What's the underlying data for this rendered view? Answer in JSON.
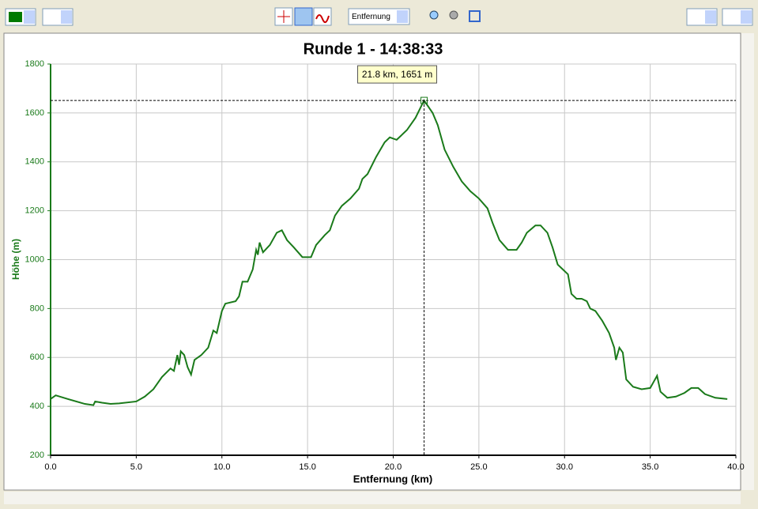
{
  "toolbar": {
    "axis_select": "Entfernung"
  },
  "chart_data": {
    "type": "line",
    "title": "Runde 1 - 14:38:33",
    "x_label": "Entfernung (km)",
    "y_label": "Höhe (m)",
    "xlim": [
      0,
      40
    ],
    "ylim": [
      200,
      1800
    ],
    "xticks": [
      {
        "value": 0,
        "label": "0.0"
      },
      {
        "value": 5,
        "label": "5.0"
      },
      {
        "value": 10,
        "label": "10.0"
      },
      {
        "value": 15,
        "label": "15.0"
      },
      {
        "value": 20,
        "label": "20.0"
      },
      {
        "value": 25,
        "label": "25.0"
      },
      {
        "value": 30,
        "label": "30.0"
      },
      {
        "value": 35,
        "label": "35.0"
      },
      {
        "value": 40,
        "label": "40.0"
      }
    ],
    "yticks": [
      200,
      400,
      600,
      800,
      1000,
      1200,
      1400,
      1600,
      1800
    ],
    "grid": true,
    "annotation": {
      "text": "21.8 km, 1651 m",
      "x": 21.8,
      "y": 1651
    },
    "series": [
      {
        "color": "#1a7a1a",
        "x": [
          0,
          0.3,
          1,
          2,
          2.5,
          2.6,
          3,
          3.5,
          4,
          5,
          5.5,
          6,
          6.5,
          7,
          7.2,
          7.4,
          7.5,
          7.6,
          7.8,
          8,
          8.2,
          8.4,
          8.8,
          9.2,
          9.5,
          9.7,
          10,
          10.2,
          10.8,
          11,
          11.2,
          11.5,
          11.8,
          12,
          12.1,
          12.2,
          12.4,
          12.8,
          13.2,
          13.5,
          13.8,
          14.2,
          14.7,
          15.2,
          15.5,
          16,
          16.3,
          16.6,
          17,
          17.5,
          18,
          18.2,
          18.5,
          19,
          19.5,
          19.8,
          20.2,
          20.8,
          21.3,
          21.8,
          22.3,
          22.6,
          23,
          23.5,
          24,
          24.5,
          25,
          25.5,
          25.8,
          26.2,
          26.7,
          27.2,
          27.5,
          27.8,
          28.3,
          28.6,
          29,
          29.3,
          29.6,
          29.9,
          30.2,
          30.4,
          30.7,
          31,
          31.3,
          31.5,
          31.8,
          32.2,
          32.6,
          32.9,
          33,
          33.2,
          33.4,
          33.6,
          34,
          34.5,
          35,
          35.2,
          35.4,
          35.6,
          36,
          36.5,
          37,
          37.4,
          37.8,
          38.2,
          38.8,
          39.5
        ],
        "values": [
          430,
          445,
          430,
          410,
          405,
          420,
          415,
          410,
          412,
          420,
          440,
          470,
          520,
          555,
          545,
          610,
          570,
          625,
          610,
          560,
          530,
          590,
          610,
          640,
          710,
          700,
          790,
          820,
          830,
          850,
          910,
          910,
          960,
          1040,
          1020,
          1070,
          1030,
          1060,
          1110,
          1120,
          1080,
          1050,
          1010,
          1010,
          1060,
          1100,
          1120,
          1180,
          1220,
          1250,
          1290,
          1330,
          1350,
          1420,
          1480,
          1500,
          1490,
          1530,
          1580,
          1651,
          1600,
          1550,
          1450,
          1380,
          1320,
          1280,
          1250,
          1210,
          1150,
          1080,
          1040,
          1040,
          1070,
          1110,
          1140,
          1140,
          1110,
          1050,
          980,
          960,
          940,
          860,
          840,
          840,
          830,
          800,
          790,
          750,
          700,
          640,
          590,
          640,
          620,
          510,
          480,
          470,
          475,
          500,
          525,
          460,
          435,
          440,
          455,
          475,
          475,
          450,
          435,
          430
        ]
      }
    ]
  }
}
